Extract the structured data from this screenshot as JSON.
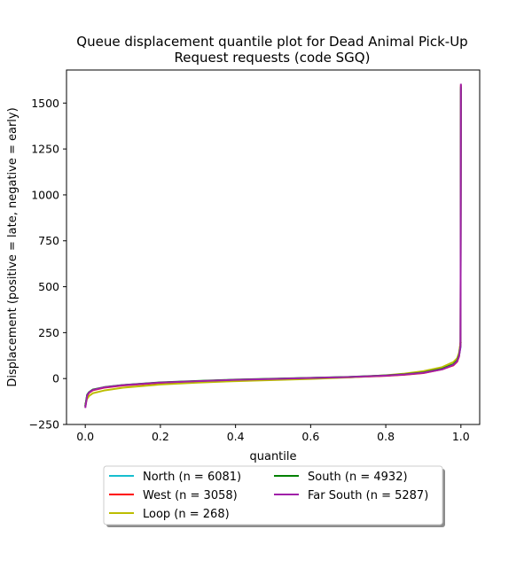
{
  "chart_data": {
    "type": "line",
    "title_lines": [
      "Queue displacement quantile plot for Dead Animal Pick-Up",
      "Request  requests (code SGQ)"
    ],
    "xlabel": "quantile",
    "ylabel": "Displacement (positive = late, negative = early)",
    "xlim": [
      -0.05,
      1.05
    ],
    "ylim": [
      -250,
      1680
    ],
    "x_ticks": [
      0.0,
      0.2,
      0.4,
      0.6,
      0.8,
      1.0
    ],
    "x_tick_labels": [
      "0.0",
      "0.2",
      "0.4",
      "0.6",
      "0.8",
      "1.0"
    ],
    "y_ticks": [
      -250,
      0,
      250,
      500,
      750,
      1000,
      1250,
      1500
    ],
    "y_tick_labels": [
      "−250",
      "0",
      "250",
      "500",
      "750",
      "1000",
      "1250",
      "1500"
    ],
    "grid": false,
    "legend_position": "below",
    "series": [
      {
        "name": "North (n = 6081)",
        "color": "#17becf",
        "x": [
          0,
          0.005,
          0.01,
          0.02,
          0.05,
          0.1,
          0.2,
          0.3,
          0.4,
          0.5,
          0.6,
          0.7,
          0.8,
          0.85,
          0.9,
          0.95,
          0.98,
          0.99,
          0.995,
          0.999,
          1.0
        ],
        "y": [
          -150,
          -90,
          -75,
          -62,
          -48,
          -36,
          -22,
          -14,
          -7,
          -2,
          3,
          8,
          16,
          22,
          32,
          52,
          75,
          95,
          125,
          170,
          1580
        ]
      },
      {
        "name": "West (n = 3058)",
        "color": "#ff0000",
        "x": [
          0,
          0.005,
          0.01,
          0.02,
          0.05,
          0.1,
          0.2,
          0.3,
          0.4,
          0.5,
          0.6,
          0.7,
          0.8,
          0.85,
          0.9,
          0.95,
          0.98,
          0.99,
          0.995,
          0.999,
          1.0
        ],
        "y": [
          -155,
          -95,
          -78,
          -64,
          -50,
          -38,
          -24,
          -15,
          -8,
          -3,
          2,
          7,
          15,
          21,
          30,
          50,
          72,
          92,
          120,
          200,
          1600
        ]
      },
      {
        "name": "Loop (n = 268)",
        "color": "#bcbd00",
        "x": [
          0,
          0.005,
          0.01,
          0.02,
          0.05,
          0.1,
          0.2,
          0.3,
          0.4,
          0.5,
          0.6,
          0.7,
          0.8,
          0.85,
          0.9,
          0.95,
          0.98,
          0.99,
          0.995,
          0.999,
          1.0
        ],
        "y": [
          -140,
          -110,
          -95,
          -80,
          -65,
          -50,
          -32,
          -22,
          -14,
          -8,
          -2,
          6,
          18,
          27,
          40,
          62,
          90,
          110,
          140,
          190,
          200
        ]
      },
      {
        "name": "South (n = 4932)",
        "color": "#008000",
        "x": [
          0,
          0.005,
          0.01,
          0.02,
          0.05,
          0.1,
          0.2,
          0.3,
          0.4,
          0.5,
          0.6,
          0.7,
          0.8,
          0.85,
          0.9,
          0.95,
          0.98,
          0.99,
          0.995,
          0.999,
          1.0
        ],
        "y": [
          -150,
          -88,
          -74,
          -60,
          -47,
          -35,
          -21,
          -13,
          -6,
          -1,
          4,
          9,
          17,
          23,
          33,
          53,
          78,
          98,
          128,
          180,
          1590
        ]
      },
      {
        "name": "Far South (n = 5287)",
        "color": "#a020a8",
        "x": [
          0,
          0.005,
          0.01,
          0.02,
          0.05,
          0.1,
          0.2,
          0.3,
          0.4,
          0.5,
          0.6,
          0.7,
          0.8,
          0.85,
          0.9,
          0.95,
          0.98,
          0.99,
          0.995,
          0.999,
          1.0
        ],
        "y": [
          -160,
          -92,
          -76,
          -62,
          -48,
          -36,
          -22,
          -14,
          -7,
          -2,
          3,
          8,
          16,
          22,
          31,
          50,
          74,
          94,
          122,
          175,
          1605
        ]
      }
    ]
  }
}
